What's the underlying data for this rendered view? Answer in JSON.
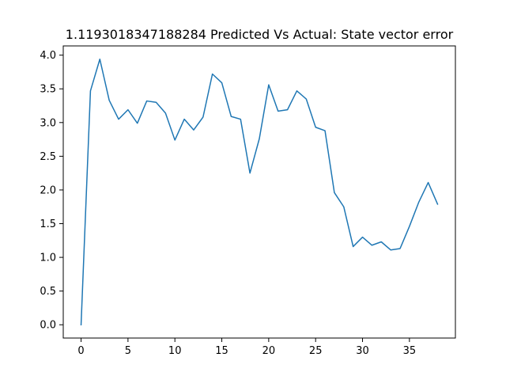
{
  "chart_data": {
    "type": "line",
    "title": "1.1193018347188284 Predicted Vs Actual: State vector error",
    "xlabel": "",
    "ylabel": "",
    "xlim": [
      -1.9,
      39.9
    ],
    "ylim": [
      -0.197,
      4.137
    ],
    "x_ticks": [
      0,
      5,
      10,
      15,
      20,
      25,
      30,
      35
    ],
    "y_ticks": [
      0.0,
      0.5,
      1.0,
      1.5,
      2.0,
      2.5,
      3.0,
      3.5,
      4.0
    ],
    "x_tick_labels": [
      "0",
      "5",
      "10",
      "15",
      "20",
      "25",
      "30",
      "35"
    ],
    "y_tick_labels": [
      "0.0",
      "0.5",
      "1.0",
      "1.5",
      "2.0",
      "2.5",
      "3.0",
      "3.5",
      "4.0"
    ],
    "grid": false,
    "color": "#1f77b4",
    "series": [
      {
        "x": [
          0,
          1,
          2,
          3,
          4,
          5,
          6,
          7,
          8,
          9,
          10,
          11,
          12,
          13,
          14,
          15,
          16,
          17,
          18,
          19,
          20,
          21,
          22,
          23,
          24,
          25,
          26,
          27,
          28,
          29,
          30,
          31,
          32,
          33,
          34,
          35,
          36,
          37,
          38
        ],
        "values": [
          0.0,
          3.47,
          3.94,
          3.33,
          3.05,
          3.19,
          2.99,
          3.32,
          3.3,
          3.14,
          2.74,
          3.05,
          2.89,
          3.08,
          3.72,
          3.59,
          3.09,
          3.05,
          2.25,
          2.76,
          3.56,
          3.17,
          3.19,
          3.47,
          3.35,
          2.93,
          2.88,
          1.96,
          1.75,
          1.16,
          1.3,
          1.18,
          1.23,
          1.11,
          1.13,
          1.46,
          1.82,
          2.11,
          1.79
        ]
      }
    ]
  }
}
